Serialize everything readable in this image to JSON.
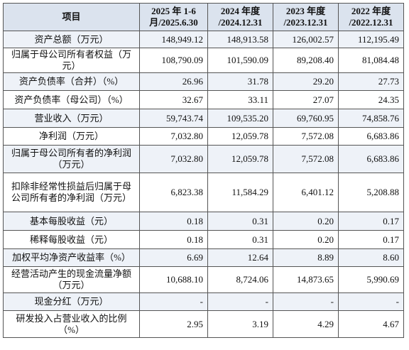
{
  "table": {
    "header": [
      "项目",
      "2025 年 1-6 月/2025.6.30",
      "2024 年度 /2024.12.31",
      "2023 年度 /2023.12.31",
      "2022 年度 /2022.12.31"
    ],
    "rows": [
      [
        "资产总额（万元）",
        "148,949.12",
        "148,913.58",
        "126,002.57",
        "112,195.49"
      ],
      [
        "归属于母公司所有者权益（万元）",
        "108,790.09",
        "101,590.09",
        "89,208.40",
        "81,084.48"
      ],
      [
        "资产负债率（合并）（%）",
        "26.96",
        "31.78",
        "29.20",
        "27.73"
      ],
      [
        "资产负债率（母公司）（%）",
        "32.67",
        "33.11",
        "27.07",
        "24.35"
      ],
      [
        "营业收入（万元）",
        "59,743.74",
        "109,535.20",
        "69,760.95",
        "74,858.76"
      ],
      [
        "净利润（万元）",
        "7,032.80",
        "12,059.78",
        "7,572.08",
        "6,683.86"
      ],
      [
        "归属于母公司所有者的净利润（万元）",
        "7,032.80",
        "12,059.78",
        "7,572.08",
        "6,683.86"
      ],
      [
        "扣除非经常性损益后归属于母公司所有者的净利润（万元）",
        "6,823.38",
        "11,584.29",
        "6,401.12",
        "5,208.88"
      ],
      [
        "基本每股收益（元）",
        "0.18",
        "0.31",
        "0.20",
        "0.17"
      ],
      [
        "稀释每股收益（元）",
        "0.18",
        "0.31",
        "0.20",
        "0.17"
      ],
      [
        "加权平均净资产收益率（%）",
        "6.69",
        "12.64",
        "8.89",
        "8.60"
      ],
      [
        "经营活动产生的现金流量净额（万元）",
        "10,688.10",
        "8,724.06",
        "14,873.65",
        "5,990.69"
      ],
      [
        "现金分红（万元）",
        "-",
        "-",
        "-",
        "-"
      ],
      [
        "研发投入占营业收入的比例（%）",
        "2.95",
        "3.19",
        "4.29",
        "4.67"
      ]
    ]
  }
}
